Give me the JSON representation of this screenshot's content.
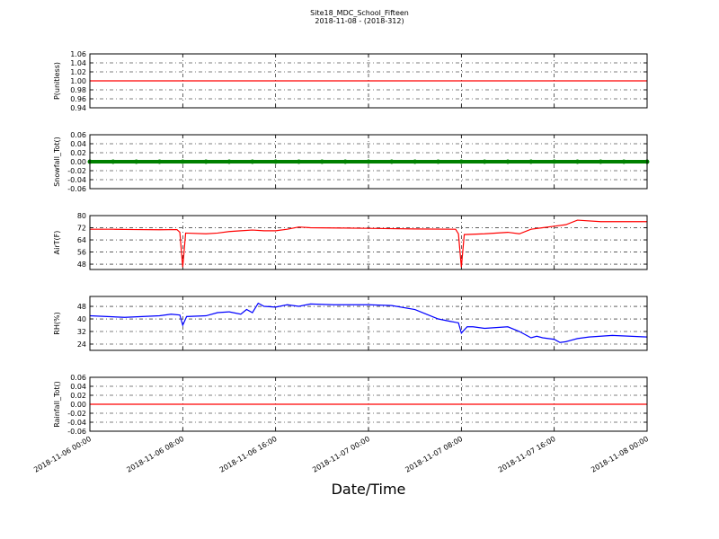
{
  "figure": {
    "title": "Site18_MDC_School_Fifteen",
    "subtitle": "2018-11-08 - (2018-312)",
    "xlabel": "Date/Time",
    "xlim": [
      "2018-11-06 00:00",
      "2018-11-08 00:00"
    ],
    "xticks": [
      "2018-11-06 00:00",
      "2018-11-06 08:00",
      "2018-11-06 16:00",
      "2018-11-07 00:00",
      "2018-11-07 08:00",
      "2018-11-07 16:00",
      "2018-11-08 00:00"
    ]
  },
  "chart_data": [
    {
      "type": "line",
      "ylabel": "P(unitless)",
      "color": "#ff0000",
      "grid": true,
      "ylim": [
        0.94,
        1.06
      ],
      "yticks": [
        0.94,
        0.96,
        0.98,
        {
          "value": 1,
          "label": "1.00"
        },
        1.02,
        1.04,
        1.06
      ],
      "x": [
        "2018-11-06 00:00",
        "2018-11-06 06:00",
        "2018-11-06 12:00",
        "2018-11-06 18:00",
        "2018-11-07 00:00",
        "2018-11-07 06:00",
        "2018-11-07 12:00",
        "2018-11-07 18:00",
        "2018-11-08 00:00"
      ],
      "values": [
        1,
        1,
        1,
        1,
        1,
        1,
        1,
        1,
        1
      ]
    },
    {
      "type": "scatter",
      "ylabel": "Snowfall_Tot()",
      "color": "#008000",
      "grid": true,
      "ylim": [
        -0.06,
        0.06
      ],
      "yticks": [
        -0.06,
        -0.04,
        -0.02,
        {
          "value": 0,
          "label": "0.00"
        },
        0.02,
        0.04,
        0.06
      ],
      "x": [
        "2018-11-06 00:00",
        "2018-11-06 02:00",
        "2018-11-06 04:00",
        "2018-11-06 06:00",
        "2018-11-06 08:00",
        "2018-11-06 10:00",
        "2018-11-06 12:00",
        "2018-11-06 14:00",
        "2018-11-06 16:00",
        "2018-11-06 18:00",
        "2018-11-06 20:00",
        "2018-11-06 22:00",
        "2018-11-07 00:00",
        "2018-11-07 02:00",
        "2018-11-07 04:00",
        "2018-11-07 06:00",
        "2018-11-07 08:00",
        "2018-11-07 10:00",
        "2018-11-07 12:00",
        "2018-11-07 14:00",
        "2018-11-07 16:00",
        "2018-11-07 18:00",
        "2018-11-07 20:00",
        "2018-11-07 22:00",
        "2018-11-08 00:00"
      ],
      "values": [
        0,
        0,
        0,
        0,
        0,
        0,
        0,
        0,
        0,
        0,
        0,
        0,
        0,
        0,
        0,
        0,
        0,
        0,
        0,
        0,
        0,
        0,
        0,
        0,
        0
      ]
    },
    {
      "type": "line",
      "ylabel": "AirT(F)",
      "color": "#ff0000",
      "grid": true,
      "ylim": [
        44.5,
        80
      ],
      "yticks": [
        48,
        56,
        64,
        72,
        80
      ],
      "x": [
        "2018-11-06 00:00",
        "2018-11-06 02:00",
        "2018-11-06 04:00",
        "2018-11-06 06:00",
        "2018-11-06 07:30",
        "2018-11-06 07:45",
        "2018-11-06 08:00",
        "2018-11-06 08:15",
        "2018-11-06 10:00",
        "2018-11-06 11:00",
        "2018-11-06 12:00",
        "2018-11-06 13:00",
        "2018-11-06 14:00",
        "2018-11-06 15:00",
        "2018-11-06 16:00",
        "2018-11-06 17:00",
        "2018-11-06 18:00",
        "2018-11-06 19:00",
        "2018-11-06 22:00",
        "2018-11-07 00:00",
        "2018-11-07 04:00",
        "2018-11-07 07:30",
        "2018-11-07 07:45",
        "2018-11-07 08:00",
        "2018-11-07 08:15",
        "2018-11-07 10:00",
        "2018-11-07 12:00",
        "2018-11-07 13:00",
        "2018-11-07 14:00",
        "2018-11-07 15:00",
        "2018-11-07 16:00",
        "2018-11-07 17:00",
        "2018-11-07 18:00",
        "2018-11-07 20:00",
        "2018-11-08 00:00"
      ],
      "values": [
        71,
        71,
        70.8,
        70.7,
        70.8,
        69,
        46,
        68.5,
        68,
        68.5,
        69.5,
        70,
        70.5,
        70,
        70,
        71,
        72.5,
        72,
        71.8,
        71.6,
        71.2,
        71,
        68,
        46,
        67.5,
        68,
        69,
        68,
        71,
        72,
        73,
        74,
        77,
        76,
        76
      ]
    },
    {
      "type": "line",
      "ylabel": "RH(%)",
      "color": "#0000ff",
      "grid": true,
      "ylim": [
        20,
        54.3
      ],
      "yticks": [
        24,
        32,
        40,
        48
      ],
      "x": [
        "2018-11-06 00:00",
        "2018-11-06 03:00",
        "2018-11-06 06:00",
        "2018-11-06 07:00",
        "2018-11-06 07:45",
        "2018-11-06 08:00",
        "2018-11-06 08:20",
        "2018-11-06 10:00",
        "2018-11-06 11:00",
        "2018-11-06 12:00",
        "2018-11-06 13:00",
        "2018-11-06 13:30",
        "2018-11-06 14:00",
        "2018-11-06 14:30",
        "2018-11-06 15:00",
        "2018-11-06 16:00",
        "2018-11-06 17:00",
        "2018-11-06 18:00",
        "2018-11-06 19:00",
        "2018-11-06 21:00",
        "2018-11-07 00:00",
        "2018-11-07 02:00",
        "2018-11-07 04:00",
        "2018-11-07 05:00",
        "2018-11-07 06:00",
        "2018-11-07 07:00",
        "2018-11-07 07:45",
        "2018-11-07 08:00",
        "2018-11-07 08:30",
        "2018-11-07 09:00",
        "2018-11-07 10:00",
        "2018-11-07 11:00",
        "2018-11-07 12:00",
        "2018-11-07 13:00",
        "2018-11-07 14:00",
        "2018-11-07 14:30",
        "2018-11-07 15:00",
        "2018-11-07 16:00",
        "2018-11-07 16:30",
        "2018-11-07 17:00",
        "2018-11-07 18:00",
        "2018-11-07 19:00",
        "2018-11-07 21:00",
        "2018-11-08 00:00"
      ],
      "values": [
        42,
        41,
        42,
        43,
        42.5,
        36,
        41.5,
        42,
        44,
        44.5,
        43,
        46,
        44,
        50,
        48,
        47.5,
        49,
        48,
        49.5,
        49,
        49,
        48.5,
        46,
        43,
        40,
        38.5,
        37.5,
        31,
        35,
        35,
        34,
        34.5,
        35,
        32,
        28,
        29,
        28,
        27,
        25,
        25.5,
        27.5,
        28.5,
        29.5,
        28.5
      ]
    },
    {
      "type": "line",
      "ylabel": "Rainfall_Tot()",
      "color": "#ff0000",
      "grid": true,
      "ylim": [
        -0.06,
        0.06
      ],
      "yticks": [
        -0.06,
        -0.04,
        -0.02,
        {
          "value": 0,
          "label": "0.00"
        },
        0.02,
        0.04,
        0.06
      ],
      "x": [
        "2018-11-06 00:00",
        "2018-11-06 06:00",
        "2018-11-06 12:00",
        "2018-11-06 18:00",
        "2018-11-07 00:00",
        "2018-11-07 06:00",
        "2018-11-07 12:00",
        "2018-11-07 18:00",
        "2018-11-08 00:00"
      ],
      "values": [
        0,
        0,
        0,
        0,
        0,
        0,
        0,
        0,
        0
      ]
    }
  ]
}
